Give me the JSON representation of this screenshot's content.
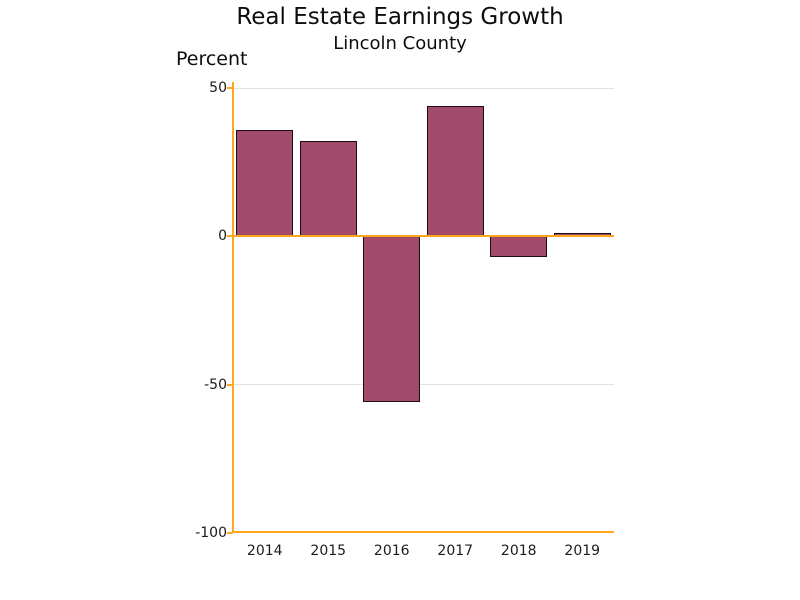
{
  "chart_data": {
    "type": "bar",
    "title": "Real Estate Earnings Growth",
    "subtitle": "Lincoln County",
    "ylabel": "Percent",
    "xlabel": "",
    "categories": [
      "2014",
      "2015",
      "2016",
      "2017",
      "2018",
      "2019"
    ],
    "values": [
      36,
      32,
      -56,
      44,
      -7,
      1
    ],
    "ylim": [
      -100,
      50
    ],
    "yticks": [
      50,
      0,
      -50,
      -100
    ],
    "gridlines": [
      50,
      -50
    ],
    "grid": true,
    "legend_position": "none",
    "colors": {
      "bar_fill": "#A14A6B",
      "bar_border": "#1D0B16",
      "axis": "#FFA520",
      "gridline": "#E3E3E3",
      "text": "#111111",
      "background": "#FFFFFF"
    }
  }
}
